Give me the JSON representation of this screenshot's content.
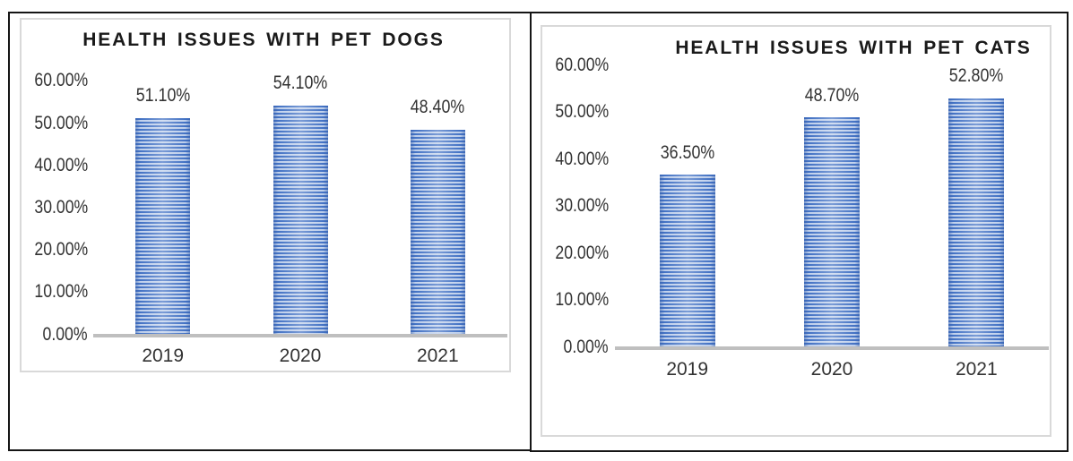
{
  "chart_data": [
    {
      "type": "bar",
      "title": "HEALTH ISSUES WITH PET DOGS",
      "categories": [
        "2019",
        "2020",
        "2021"
      ],
      "values": [
        51.1,
        54.1,
        48.4
      ],
      "value_labels": [
        "51.10%",
        "54.10%",
        "48.40%"
      ],
      "y_tick_labels": [
        "60.00%",
        "50.00%",
        "40.00%",
        "30.00%",
        "20.00%",
        "10.00%",
        "0.00%"
      ],
      "ylim": [
        0,
        60
      ],
      "grid": false,
      "legend": false,
      "bar_color": "#4472C4",
      "bar_fill_pattern": "horizontal-stripes",
      "axis_line_color": "#BFBFBF"
    },
    {
      "type": "bar",
      "title": "HEALTH ISSUES WITH PET CATS",
      "categories": [
        "2019",
        "2020",
        "2021"
      ],
      "values": [
        36.5,
        48.7,
        52.8
      ],
      "value_labels": [
        "36.50%",
        "48.70%",
        "52.80%"
      ],
      "y_tick_labels": [
        "60.00%",
        "50.00%",
        "40.00%",
        "30.00%",
        "20.00%",
        "10.00%",
        "0.00%"
      ],
      "ylim": [
        0,
        60
      ],
      "grid": false,
      "legend": false,
      "bar_color": "#4472C4",
      "bar_fill_pattern": "horizontal-stripes",
      "axis_line_color": "#BFBFBF"
    }
  ]
}
